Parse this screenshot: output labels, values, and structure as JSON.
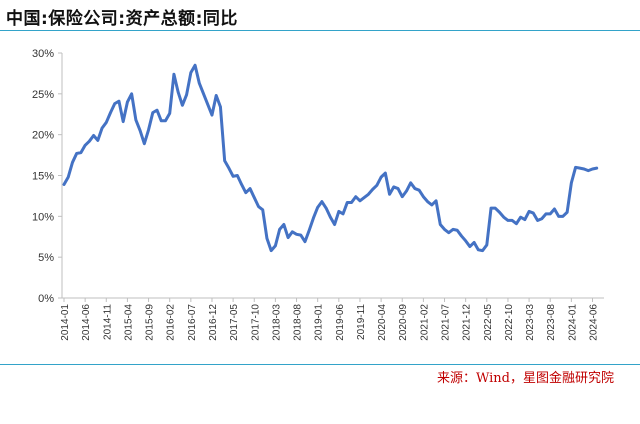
{
  "header": {
    "title": "中国:保险公司:资产总额:同比"
  },
  "footer": {
    "source": "来源：Wind，星图金融研究院"
  },
  "colors": {
    "line": "#4472c4",
    "rule": "#33a3c9",
    "source_text": "#c00000",
    "axis": "#bfbfbf"
  },
  "chart_data": {
    "type": "line",
    "title": "中国:保险公司:资产总额:同比",
    "xlabel": "",
    "ylabel": "",
    "ylim": [
      0,
      30
    ],
    "y_ticks": [
      "0%",
      "5%",
      "10%",
      "15%",
      "20%",
      "25%",
      "30%"
    ],
    "y_tick_values": [
      0,
      5,
      10,
      15,
      20,
      25,
      30
    ],
    "x_tick_labels": [
      "2014-01",
      "2014-06",
      "2014-11",
      "2015-04",
      "2015-09",
      "2016-02",
      "2016-07",
      "2016-12",
      "2017-05",
      "2017-10",
      "2018-03",
      "2018-08",
      "2019-01",
      "2019-06",
      "2019-11",
      "2020-04",
      "2020-09",
      "2021-02",
      "2021-07",
      "2021-12",
      "2022-05",
      "2022-10",
      "2023-03",
      "2023-08",
      "2024-01",
      "2024-06"
    ],
    "grid": false,
    "legend": "none",
    "series": [
      {
        "x": [
          "2014-01",
          "2014-02",
          "2014-03",
          "2014-04",
          "2014-05",
          "2014-06",
          "2014-07",
          "2014-08",
          "2014-09",
          "2014-10",
          "2014-11",
          "2014-12",
          "2015-01",
          "2015-02",
          "2015-03",
          "2015-04",
          "2015-05",
          "2015-06",
          "2015-07",
          "2015-08",
          "2015-09",
          "2015-10",
          "2015-11",
          "2015-12",
          "2016-01",
          "2016-02",
          "2016-03",
          "2016-04",
          "2016-05",
          "2016-06",
          "2016-07",
          "2016-08",
          "2016-09",
          "2016-10",
          "2016-11",
          "2016-12",
          "2017-01",
          "2017-02",
          "2017-03",
          "2017-04",
          "2017-05",
          "2017-06",
          "2017-07",
          "2017-08",
          "2017-09",
          "2017-10",
          "2017-11",
          "2017-12",
          "2018-01",
          "2018-02",
          "2018-03",
          "2018-04",
          "2018-05",
          "2018-06",
          "2018-07",
          "2018-08",
          "2018-09",
          "2018-10",
          "2018-11",
          "2018-12",
          "2019-01",
          "2019-02",
          "2019-03",
          "2019-04",
          "2019-05",
          "2019-06",
          "2019-07",
          "2019-08",
          "2019-09",
          "2019-10",
          "2019-11",
          "2019-12",
          "2020-01",
          "2020-02",
          "2020-03",
          "2020-04",
          "2020-05",
          "2020-06",
          "2020-07",
          "2020-08",
          "2020-09",
          "2020-10",
          "2020-11",
          "2020-12",
          "2021-01",
          "2021-02",
          "2021-03",
          "2021-04",
          "2021-05",
          "2021-06",
          "2021-07",
          "2021-08",
          "2021-09",
          "2021-10",
          "2021-11",
          "2021-12",
          "2022-01",
          "2022-02",
          "2022-03",
          "2022-04",
          "2022-05",
          "2022-06",
          "2022-07",
          "2022-08",
          "2022-09",
          "2022-10",
          "2022-11",
          "2022-12",
          "2023-01",
          "2023-02",
          "2023-03",
          "2023-04",
          "2023-05",
          "2023-06",
          "2023-07",
          "2023-08",
          "2023-09",
          "2023-10",
          "2023-11",
          "2023-12",
          "2024-01",
          "2024-02",
          "2024-03",
          "2024-04",
          "2024-05",
          "2024-06",
          "2024-07"
        ],
        "values": [
          13.9,
          14.8,
          16.6,
          17.7,
          17.8,
          18.7,
          19.2,
          19.9,
          19.3,
          20.8,
          21.5,
          22.7,
          23.8,
          24.1,
          21.6,
          24.0,
          25.0,
          21.8,
          20.5,
          18.9,
          20.6,
          22.7,
          23.0,
          21.7,
          21.7,
          22.6,
          27.4,
          25.2,
          23.6,
          24.9,
          27.6,
          28.5,
          26.3,
          25.0,
          23.7,
          22.4,
          24.8,
          23.4,
          16.8,
          15.9,
          14.9,
          15.0,
          13.9,
          12.9,
          13.4,
          12.3,
          11.2,
          10.8,
          7.3,
          5.8,
          6.4,
          8.4,
          9.0,
          7.4,
          8.1,
          7.8,
          7.7,
          6.9,
          8.3,
          9.8,
          11.1,
          11.8,
          11.0,
          9.9,
          9.0,
          10.6,
          10.3,
          11.7,
          11.7,
          12.4,
          11.9,
          12.3,
          12.7,
          13.3,
          13.8,
          14.8,
          15.3,
          12.7,
          13.6,
          13.4,
          12.4,
          13.1,
          14.1,
          13.4,
          13.2,
          12.4,
          11.8,
          11.4,
          11.9,
          9.0,
          8.4,
          8.0,
          8.4,
          8.3,
          7.6,
          7.0,
          6.3,
          6.8,
          5.9,
          5.8,
          6.5,
          11.0,
          11.0,
          10.5,
          9.9,
          9.5,
          9.5,
          9.1,
          9.9,
          9.6,
          10.6,
          10.4,
          9.5,
          9.7,
          10.3,
          10.3,
          10.9,
          10.0,
          10.0,
          10.5,
          14.1,
          16.0,
          15.9,
          15.8,
          15.6,
          15.8,
          15.9
        ]
      }
    ]
  }
}
